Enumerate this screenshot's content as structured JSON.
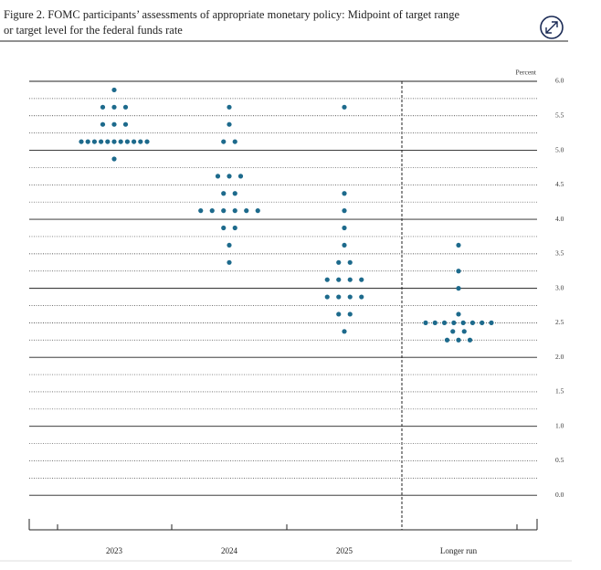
{
  "chart_data": {
    "type": "dot",
    "title_lines": [
      "Figure 2. FOMC participants’ assessments of appropriate monetary policy: Midpoint of target range",
      "or target level for the federal funds rate"
    ],
    "y_axis_label": "Percent",
    "categories": [
      "2023",
      "2024",
      "2025",
      "Longer run"
    ],
    "values": [
      [
        5.875,
        5.625,
        5.625,
        5.625,
        5.375,
        5.375,
        5.375,
        5.125,
        5.125,
        5.125,
        5.125,
        5.125,
        5.125,
        5.125,
        5.125,
        5.125,
        5.125,
        5.125,
        4.875
      ],
      [
        5.625,
        5.375,
        5.125,
        5.125,
        4.625,
        4.625,
        4.625,
        4.375,
        4.375,
        4.125,
        4.125,
        4.125,
        4.125,
        4.125,
        4.125,
        3.875,
        3.875,
        3.625,
        3.375
      ],
      [
        5.625,
        4.375,
        4.125,
        3.875,
        3.625,
        3.375,
        3.375,
        3.125,
        3.125,
        3.125,
        3.125,
        2.875,
        2.875,
        2.875,
        2.875,
        2.625,
        2.625,
        2.375
      ],
      [
        3.625,
        3.25,
        3.0,
        2.625,
        2.5,
        2.5,
        2.5,
        2.5,
        2.5,
        2.5,
        2.5,
        2.5,
        2.375,
        2.375,
        2.25,
        2.25,
        2.25
      ]
    ],
    "color": "#1d6a8c",
    "ylim": [
      -0.5,
      6.0
    ],
    "yticks": [
      {
        "value": 0,
        "label": "0.0"
      },
      0.5,
      {
        "value": 1,
        "label": "1.0"
      },
      1.5,
      {
        "value": 2,
        "label": "2.0"
      },
      2.5,
      {
        "value": 3,
        "label": "3.0"
      },
      3.5,
      {
        "value": 4,
        "label": "4.0"
      },
      4.5,
      {
        "value": 5,
        "label": "5.0"
      },
      5.5,
      {
        "value": 6,
        "label": "6.0"
      }
    ],
    "minor_yticks": [
      0.25,
      0.75,
      1.25,
      1.75,
      2.25,
      2.75,
      3.25,
      3.75,
      4.25,
      4.75,
      5.25,
      5.75
    ],
    "grid": true
  }
}
